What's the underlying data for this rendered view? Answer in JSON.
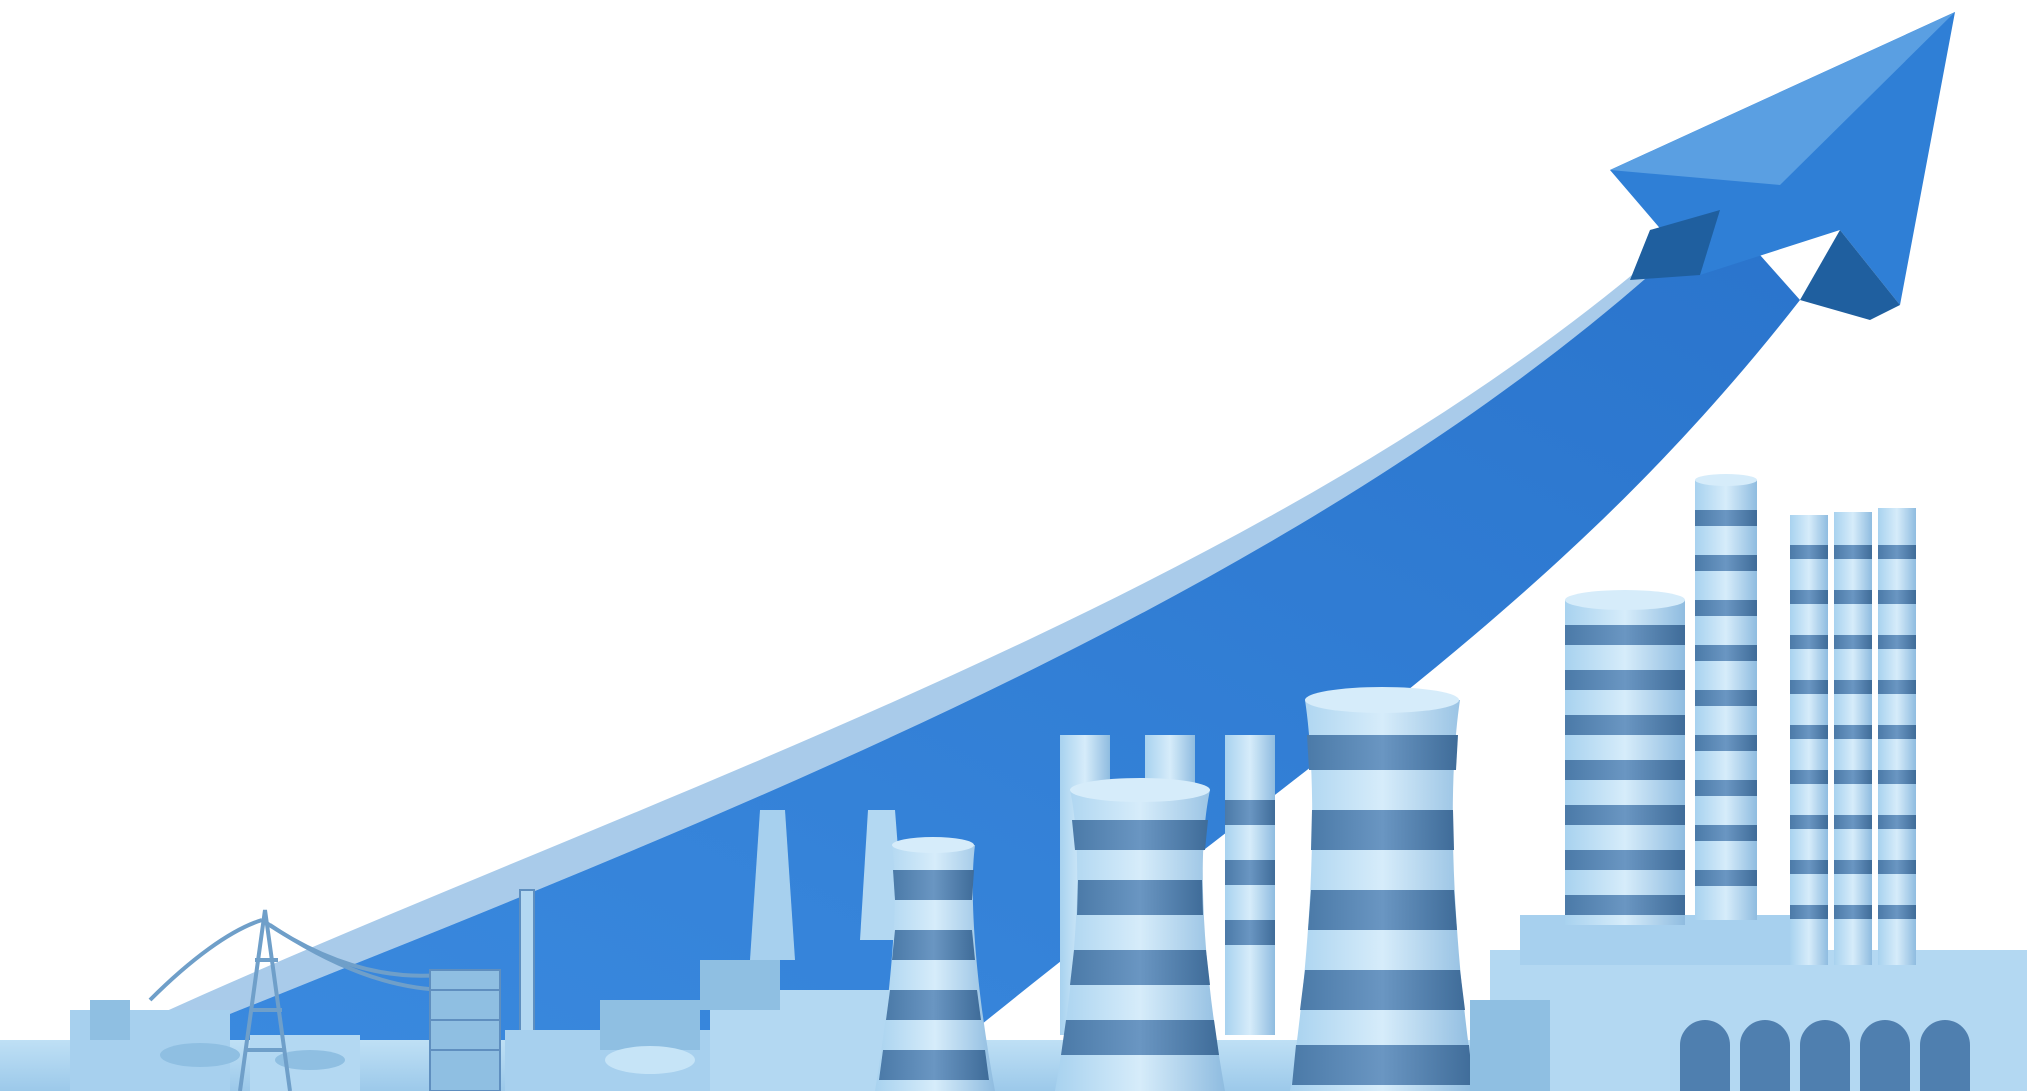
{
  "scene": {
    "subject": "growth-arrow-over-industrial-skyline",
    "colors": {
      "background": "#ffffff",
      "arrow_face": "#2f7fd6",
      "arrow_top": "#a9cbea",
      "arrow_shadow": "#1f5f9f",
      "light": "#bfe0f5",
      "mid": "#8fbfe2",
      "stripe": "#4f7faf",
      "dark": "#3f6f9f"
    }
  }
}
